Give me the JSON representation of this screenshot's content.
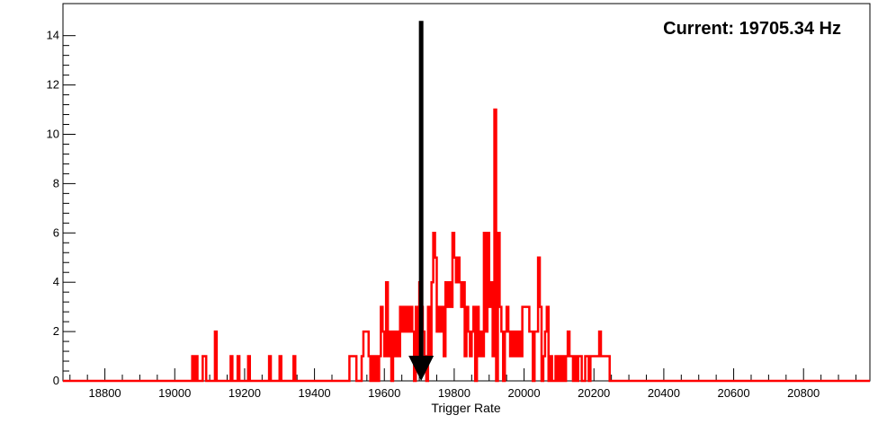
{
  "chart_data": {
    "type": "histogram",
    "title": "",
    "xlabel": "Trigger Rate",
    "ylabel": "",
    "xlim": [
      18680,
      20990
    ],
    "ylim": [
      0,
      15.3
    ],
    "x_major_ticks": [
      18800,
      19000,
      19200,
      19400,
      19600,
      19800,
      20000,
      20200,
      20400,
      20600,
      20800
    ],
    "y_major_ticks": [
      0,
      2,
      4,
      6,
      8,
      10,
      12,
      14
    ],
    "grid": false,
    "legend": "none",
    "series": [
      {
        "color": "#ff0000",
        "bins": [
          [
            19050,
            1
          ],
          [
            19055,
            0
          ],
          [
            19060,
            1
          ],
          [
            19065,
            0
          ],
          [
            19070,
            0
          ],
          [
            19080,
            1
          ],
          [
            19090,
            0
          ],
          [
            19115,
            2
          ],
          [
            19120,
            0
          ],
          [
            19160,
            1
          ],
          [
            19165,
            0
          ],
          [
            19180,
            1
          ],
          [
            19185,
            0
          ],
          [
            19210,
            1
          ],
          [
            19215,
            0
          ],
          [
            19270,
            1
          ],
          [
            19275,
            0
          ],
          [
            19300,
            1
          ],
          [
            19305,
            0
          ],
          [
            19340,
            1
          ],
          [
            19345,
            0
          ],
          [
            19500,
            1
          ],
          [
            19520,
            0
          ],
          [
            19535,
            1
          ],
          [
            19540,
            2
          ],
          [
            19555,
            1
          ],
          [
            19560,
            0
          ],
          [
            19565,
            1
          ],
          [
            19570,
            0
          ],
          [
            19575,
            1
          ],
          [
            19580,
            0
          ],
          [
            19585,
            1
          ],
          [
            19590,
            3
          ],
          [
            19595,
            2
          ],
          [
            19600,
            1
          ],
          [
            19605,
            4
          ],
          [
            19610,
            1
          ],
          [
            19615,
            2
          ],
          [
            19620,
            0
          ],
          [
            19625,
            2
          ],
          [
            19630,
            1
          ],
          [
            19635,
            2
          ],
          [
            19640,
            1
          ],
          [
            19645,
            3
          ],
          [
            19650,
            2
          ],
          [
            19655,
            3
          ],
          [
            19660,
            2
          ],
          [
            19665,
            3
          ],
          [
            19670,
            2
          ],
          [
            19675,
            3
          ],
          [
            19680,
            2
          ],
          [
            19685,
            0
          ],
          [
            19690,
            3
          ],
          [
            19695,
            1
          ],
          [
            19700,
            4
          ],
          [
            19705,
            3
          ],
          [
            19710,
            2
          ],
          [
            19715,
            1
          ],
          [
            19720,
            0
          ],
          [
            19725,
            3
          ],
          [
            19730,
            1
          ],
          [
            19735,
            4
          ],
          [
            19740,
            6
          ],
          [
            19745,
            5
          ],
          [
            19750,
            2
          ],
          [
            19755,
            3
          ],
          [
            19760,
            2
          ],
          [
            19765,
            3
          ],
          [
            19770,
            1
          ],
          [
            19775,
            4
          ],
          [
            19780,
            3
          ],
          [
            19785,
            4
          ],
          [
            19790,
            3
          ],
          [
            19795,
            6
          ],
          [
            19800,
            5
          ],
          [
            19805,
            4
          ],
          [
            19810,
            5
          ],
          [
            19815,
            4
          ],
          [
            19820,
            3
          ],
          [
            19825,
            4
          ],
          [
            19830,
            1
          ],
          [
            19835,
            3
          ],
          [
            19840,
            2
          ],
          [
            19845,
            1
          ],
          [
            19850,
            2
          ],
          [
            19855,
            3
          ],
          [
            19860,
            0
          ],
          [
            19865,
            3
          ],
          [
            19870,
            1
          ],
          [
            19875,
            2
          ],
          [
            19880,
            1
          ],
          [
            19885,
            6
          ],
          [
            19890,
            2
          ],
          [
            19895,
            6
          ],
          [
            19900,
            3
          ],
          [
            19905,
            4
          ],
          [
            19910,
            1
          ],
          [
            19915,
            11
          ],
          [
            19920,
            0
          ],
          [
            19925,
            6
          ],
          [
            19930,
            3
          ],
          [
            19935,
            2
          ],
          [
            19940,
            0
          ],
          [
            19945,
            2
          ],
          [
            19950,
            3
          ],
          [
            19955,
            2
          ],
          [
            19960,
            1
          ],
          [
            19965,
            2
          ],
          [
            19970,
            1
          ],
          [
            19975,
            2
          ],
          [
            19980,
            1
          ],
          [
            19985,
            2
          ],
          [
            19990,
            1
          ],
          [
            19995,
            3
          ],
          [
            20000,
            3
          ],
          [
            20015,
            2
          ],
          [
            20020,
            2
          ],
          [
            20025,
            0
          ],
          [
            20030,
            2
          ],
          [
            20040,
            5
          ],
          [
            20045,
            3
          ],
          [
            20050,
            0
          ],
          [
            20055,
            1
          ],
          [
            20060,
            2
          ],
          [
            20065,
            3
          ],
          [
            20070,
            0
          ],
          [
            20075,
            1
          ],
          [
            20080,
            0
          ],
          [
            20090,
            1
          ],
          [
            20095,
            0
          ],
          [
            20100,
            1
          ],
          [
            20105,
            0
          ],
          [
            20110,
            1
          ],
          [
            20115,
            0
          ],
          [
            20120,
            1
          ],
          [
            20125,
            2
          ],
          [
            20130,
            1
          ],
          [
            20140,
            0
          ],
          [
            20145,
            1
          ],
          [
            20150,
            0
          ],
          [
            20155,
            1
          ],
          [
            20160,
            1
          ],
          [
            20165,
            0
          ],
          [
            20175,
            1
          ],
          [
            20185,
            0
          ],
          [
            20190,
            1
          ],
          [
            20215,
            2
          ],
          [
            20220,
            1
          ],
          [
            20245,
            0
          ]
        ]
      }
    ],
    "marker": {
      "value": 19705.34,
      "label": "Current: 19705.34 Hz",
      "arrow_top_y": 14.6
    }
  }
}
